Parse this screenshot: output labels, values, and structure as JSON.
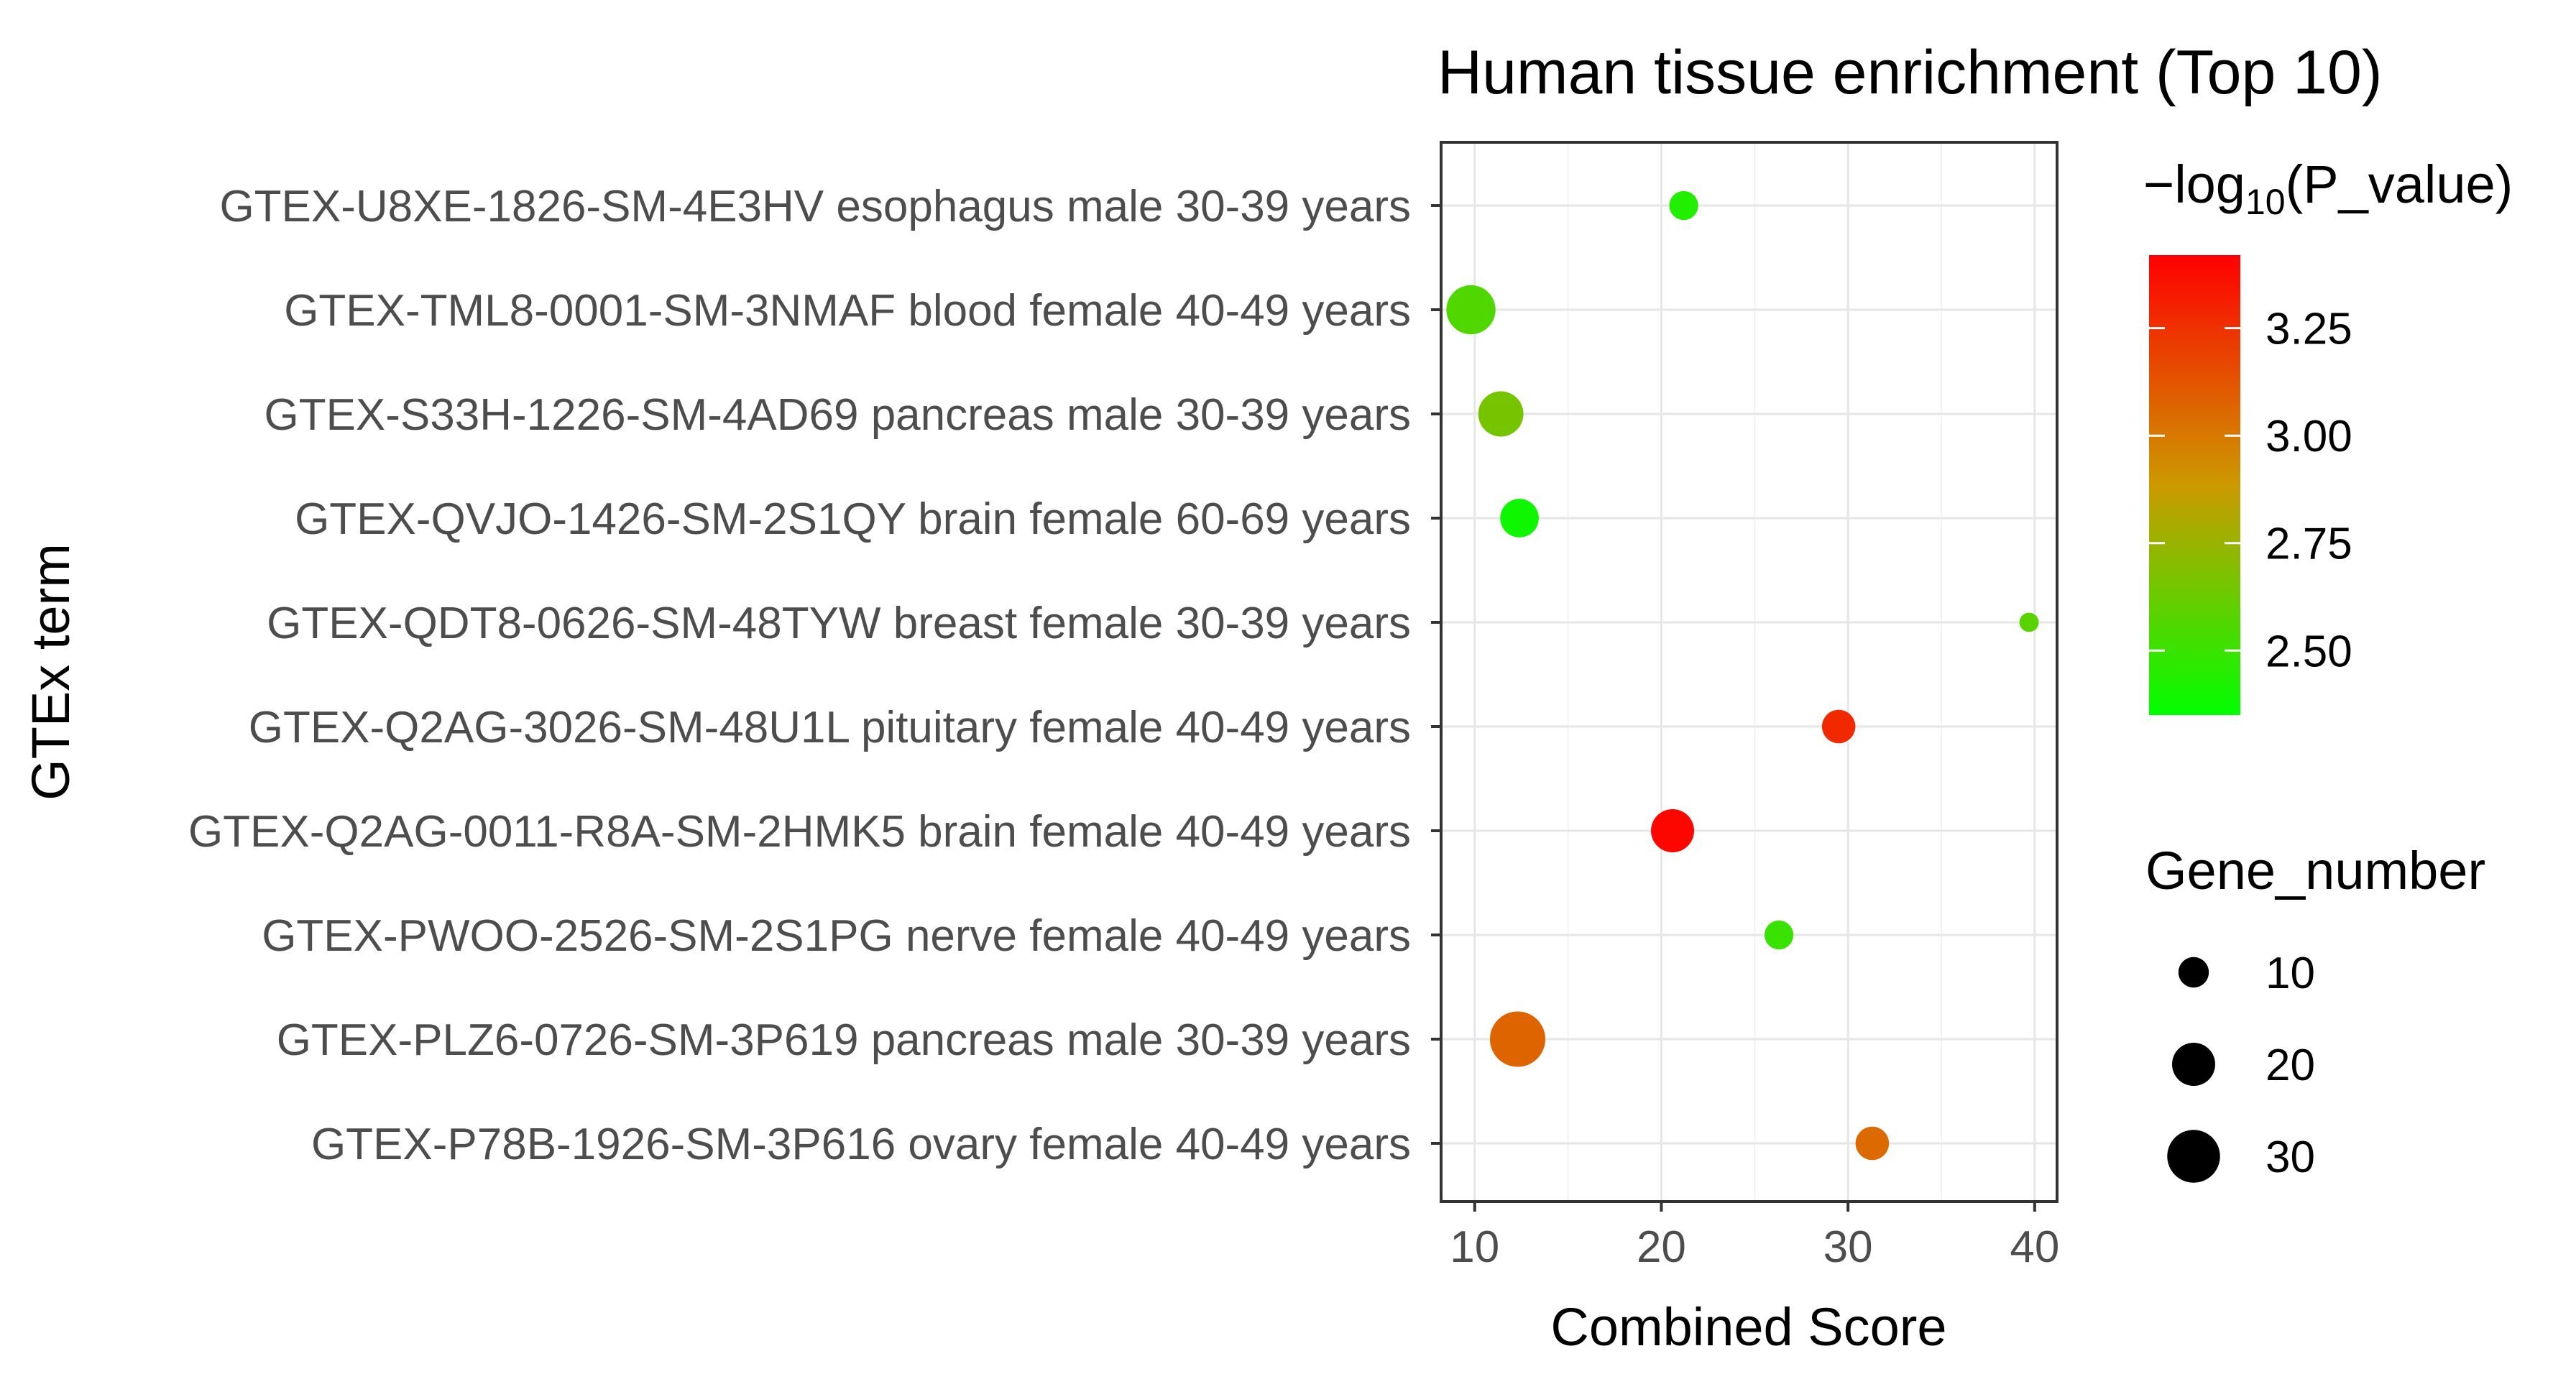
{
  "chart_data": {
    "type": "scatter",
    "title": "Human tissue enrichment (Top 10)",
    "xlabel": "Combined Score",
    "ylabel": "GTEx term",
    "xlim": [
      8.2,
      41.2
    ],
    "xticks": [
      10,
      20,
      30,
      40
    ],
    "grid": true,
    "categories": [
      "GTEX-U8XE-1826-SM-4E3HV esophagus male 30-39 years",
      "GTEX-TML8-0001-SM-3NMAF blood female 40-49 years",
      "GTEX-S33H-1226-SM-4AD69 pancreas male 30-39 years",
      "GTEX-QVJO-1426-SM-2S1QY brain female 60-69 years",
      "GTEX-QDT8-0626-SM-48TYW breast female 30-39 years",
      "GTEX-Q2AG-3026-SM-48U1L pituitary female 40-49 years",
      "GTEX-Q2AG-0011-R8A-SM-2HMK5 brain female 40-49 years",
      "GTEX-PWOO-2526-SM-2S1PG nerve female 40-49 years",
      "GTEX-PLZ6-0726-SM-3P619 pancreas male 30-39 years",
      "GTEX-P78B-1926-SM-3P616 ovary female 40-49 years"
    ],
    "points": [
      {
        "term": "GTEX-U8XE-1826-SM-4E3HV esophagus male 30-39 years",
        "combined_score": 21.2,
        "neg_log10_p": 2.44,
        "gene_number": 9
      },
      {
        "term": "GTEX-TML8-0001-SM-3NMAF blood female 40-49 years",
        "combined_score": 9.8,
        "neg_log10_p": 2.56,
        "gene_number": 26
      },
      {
        "term": "GTEX-S33H-1226-SM-4AD69 pancreas male 30-39 years",
        "combined_score": 11.4,
        "neg_log10_p": 2.66,
        "gene_number": 22
      },
      {
        "term": "GTEX-QVJO-1426-SM-2S1QY brain female 60-69 years",
        "combined_score": 12.4,
        "neg_log10_p": 2.39,
        "gene_number": 16
      },
      {
        "term": "GTEX-QDT8-0626-SM-48TYW breast female 30-39 years",
        "combined_score": 39.7,
        "neg_log10_p": 2.58,
        "gene_number": 4
      },
      {
        "term": "GTEX-Q2AG-3026-SM-48U1L pituitary female 40-49 years",
        "combined_score": 29.5,
        "neg_log10_p": 3.28,
        "gene_number": 12
      },
      {
        "term": "GTEX-Q2AG-0011-R8A-SM-2HMK5 brain female 40-49 years",
        "combined_score": 20.6,
        "neg_log10_p": 3.4,
        "gene_number": 20
      },
      {
        "term": "GTEX-PWOO-2526-SM-2S1PG nerve female 40-49 years",
        "combined_score": 26.3,
        "neg_log10_p": 2.5,
        "gene_number": 9
      },
      {
        "term": "GTEX-PLZ6-0726-SM-3P619 pancreas male 30-39 years",
        "combined_score": 12.3,
        "neg_log10_p": 3.07,
        "gene_number": 33
      },
      {
        "term": "GTEX-P78B-1926-SM-3P616 ovary female 40-49 years",
        "combined_score": 31.3,
        "neg_log10_p": 3.05,
        "gene_number": 12
      }
    ],
    "color_legend": {
      "title_prefix": "−log",
      "title_subscript": "10",
      "title_suffix": "(P_value)",
      "range": [
        2.35,
        3.42
      ],
      "ticks": [
        2.5,
        2.75,
        3.0,
        3.25
      ],
      "tick_labels": [
        "2.50",
        "2.75",
        "3.00",
        "3.25"
      ],
      "low_color": "#00ff00",
      "mid_color": "#cc9900",
      "high_color": "#ff0000"
    },
    "size_legend": {
      "title": "Gene_number",
      "values": [
        10,
        20,
        30
      ],
      "labels": [
        "10",
        "20",
        "30"
      ]
    }
  }
}
